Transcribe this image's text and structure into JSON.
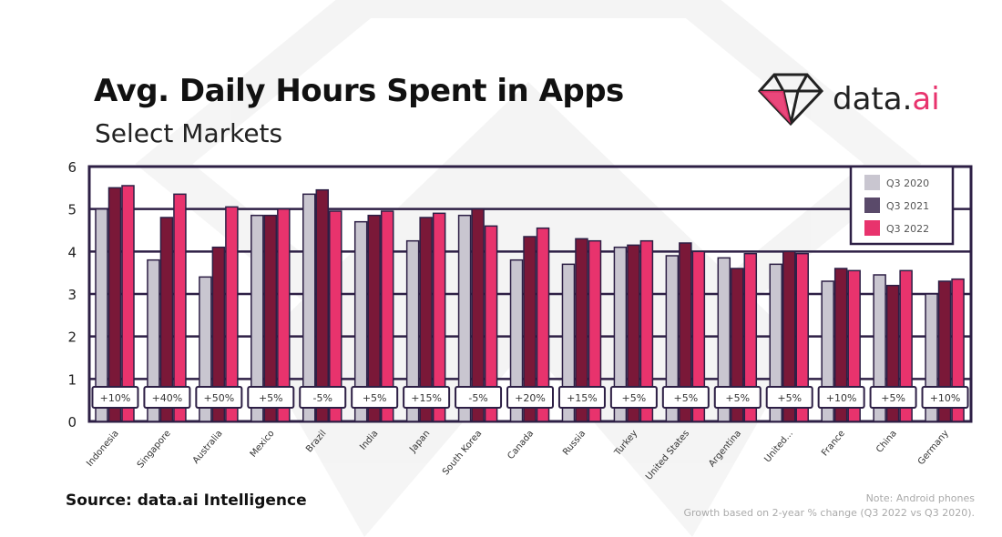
{
  "header": {
    "title": "Avg. Daily Hours Spent in Apps",
    "subtitle": "Select Markets"
  },
  "logo": {
    "text_main": "data.",
    "text_accent": "ai",
    "icon": "diamond-icon",
    "accent_color": "#e8336d"
  },
  "footer": {
    "source": "Source: data.ai Intelligence",
    "note_line1": "Note: Android phones",
    "note_line2": "Growth based on 2-year % change (Q3 2022 vs Q3 2020)."
  },
  "chart_data": {
    "type": "bar",
    "ylim": [
      0,
      6
    ],
    "yticks": [
      "0",
      "1",
      "2",
      "3",
      "4",
      "5",
      "6"
    ],
    "grid": true,
    "legend_position": "top-right",
    "categories": [
      "Indonesia",
      "Singapore",
      "Australia",
      "Mexico",
      "Brazil",
      "India",
      "Japan",
      "South Korea",
      "Canada",
      "Russia",
      "Turkey",
      "United States",
      "Argentina",
      "United...",
      "France",
      "China",
      "Germany"
    ],
    "series": [
      {
        "name": "Q3 2020",
        "color": "#c9c6d0",
        "values": [
          5.0,
          3.8,
          3.4,
          4.85,
          5.35,
          4.7,
          4.25,
          4.85,
          3.8,
          3.7,
          4.1,
          3.9,
          3.85,
          3.7,
          3.3,
          3.45,
          3.0
        ]
      },
      {
        "name": "Q3 2021",
        "color": "#7a1838",
        "legend_color": "#5a4a6a",
        "values": [
          5.5,
          4.8,
          4.1,
          4.85,
          5.45,
          4.85,
          4.8,
          5.0,
          4.35,
          4.3,
          4.15,
          4.2,
          3.6,
          4.0,
          3.6,
          3.2,
          3.3
        ]
      },
      {
        "name": "Q3 2022",
        "color": "#e8336d",
        "values": [
          5.55,
          5.35,
          5.05,
          5.0,
          4.95,
          4.95,
          4.9,
          4.6,
          4.55,
          4.25,
          4.25,
          4.0,
          3.95,
          3.95,
          3.55,
          3.55,
          3.35
        ]
      }
    ],
    "growth_labels": [
      "+10%",
      "+40%",
      "+50%",
      "+5%",
      "-5%",
      "+5%",
      "+15%",
      "-5%",
      "+20%",
      "+15%",
      "+5%",
      "+5%",
      "+5%",
      "+5%",
      "+10%",
      "+5%",
      "+10%"
    ]
  }
}
